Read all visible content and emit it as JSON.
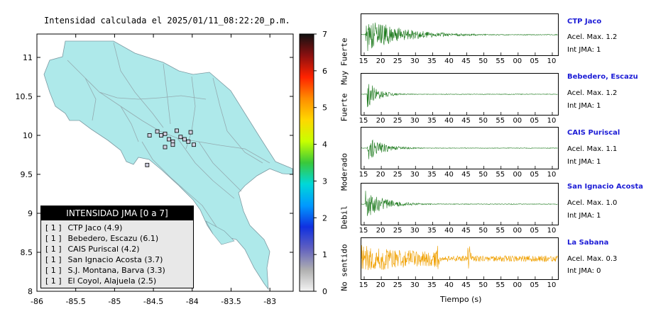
{
  "map": {
    "title": "Intensidad calculada el 2025/01/11_08:22:20_p.m.",
    "x_ticks": [
      "-86",
      "-85.5",
      "-85",
      "-84.5",
      "-84",
      "-83.5",
      "-83"
    ],
    "y_ticks": [
      "11",
      "10.5",
      "10",
      "9.5",
      "9",
      "8.5",
      "8"
    ],
    "xlim": [
      -86,
      -82.7
    ],
    "ylim": [
      8,
      11.3
    ],
    "land_color": "#aee9ea",
    "stations": [
      {
        "lon": -84.55,
        "lat": 10.0
      },
      {
        "lon": -84.45,
        "lat": 10.05
      },
      {
        "lon": -84.4,
        "lat": 10.0
      },
      {
        "lon": -84.35,
        "lat": 10.02
      },
      {
        "lon": -84.3,
        "lat": 9.95
      },
      {
        "lon": -84.25,
        "lat": 9.92
      },
      {
        "lon": -84.15,
        "lat": 9.98
      },
      {
        "lon": -84.1,
        "lat": 9.95
      },
      {
        "lon": -84.05,
        "lat": 9.92
      },
      {
        "lon": -83.98,
        "lat": 9.88
      },
      {
        "lon": -84.02,
        "lat": 10.04
      },
      {
        "lon": -84.2,
        "lat": 10.06
      },
      {
        "lon": -84.35,
        "lat": 9.85
      },
      {
        "lon": -84.58,
        "lat": 9.62
      },
      {
        "lon": -84.25,
        "lat": 9.88
      }
    ]
  },
  "legend": {
    "title": "INTENSIDAD JMA [0 a 7]",
    "rows": [
      {
        "code": "[ 1 ]",
        "label": "CTP Jaco (4.9)"
      },
      {
        "code": "[ 1 ]",
        "label": "Bebedero, Escazu (6.1)"
      },
      {
        "code": "[ 1 ]",
        "label": "CAIS Puriscal (4.2)"
      },
      {
        "code": "[ 1 ]",
        "label": "San Ignacio Acosta (3.7)"
      },
      {
        "code": "[ 1 ]",
        "label": "S.J. Montana, Barva (3.3)"
      },
      {
        "code": "[ 1 ]",
        "label": "El Coyol, Alajuela (2.5)"
      }
    ]
  },
  "colorbar": {
    "ticks": [
      "7",
      "6",
      "5",
      "4",
      "3",
      "2",
      "1",
      "0"
    ],
    "labels": [
      "Muy Fuerte",
      "Fuerte",
      "Moderado",
      "Debil",
      "No sentido"
    ],
    "colors": [
      "#111111",
      "#8b1010",
      "#ff2200",
      "#ff8c00",
      "#ffd700",
      "#c8ff00",
      "#3ac83a",
      "#00d8d8",
      "#0099ff",
      "#1030e0",
      "#6060c0",
      "#b0b0b0",
      "#f4f4f4"
    ]
  },
  "traces": {
    "xlabel": "Tiempo (s)",
    "panels": [
      {
        "station": "CTP Jaco",
        "acel": "Acel. Max. 1.2",
        "int": "Int JMA: 1",
        "color": "#1d7a1d",
        "ticks": [
          "15",
          "20",
          "25",
          "30",
          "35",
          "40",
          "45",
          "50",
          "55",
          "00",
          "05",
          "10"
        ],
        "onset": 0.02,
        "decay": 0.18,
        "amp": 1.0
      },
      {
        "station": "Bebedero, Escazu",
        "acel": "Acel. Max. 1.2",
        "int": "Int JMA: 1",
        "color": "#1d7a1d",
        "ticks": [
          "15",
          "20",
          "25",
          "30",
          "35",
          "40",
          "45",
          "50",
          "55",
          "00",
          "05",
          "10"
        ],
        "onset": 0.03,
        "decay": 0.06,
        "amp": 0.75
      },
      {
        "station": "CAIS Puriscal",
        "acel": "Acel. Max. 1.1",
        "int": "Int JMA: 1",
        "color": "#1d7a1d",
        "ticks": [
          "15",
          "20",
          "25",
          "30",
          "35",
          "40",
          "45",
          "50",
          "55",
          "00",
          "05",
          "10"
        ],
        "onset": 0.03,
        "decay": 0.08,
        "amp": 0.7
      },
      {
        "station": "San Ignacio Acosta",
        "acel": "Acel. Max. 1.0",
        "int": "Int JMA: 1",
        "color": "#1d7a1d",
        "ticks": [
          "15",
          "20",
          "25",
          "30",
          "35",
          "40",
          "45",
          "50",
          "55",
          "00",
          "05",
          "10"
        ],
        "onset": 0.02,
        "decay": 0.1,
        "amp": 0.8
      },
      {
        "station": "La Sabana",
        "acel": "Acel. Max. 0.3",
        "int": "Int JMA: 0",
        "color": "#f0a000",
        "ticks": [
          "15",
          "20",
          "25",
          "30",
          "35",
          "40",
          "45",
          "50",
          "55",
          "00",
          "05",
          "10"
        ],
        "onset": 0.05,
        "decay": 0.25,
        "amp": 0.8
      }
    ]
  }
}
